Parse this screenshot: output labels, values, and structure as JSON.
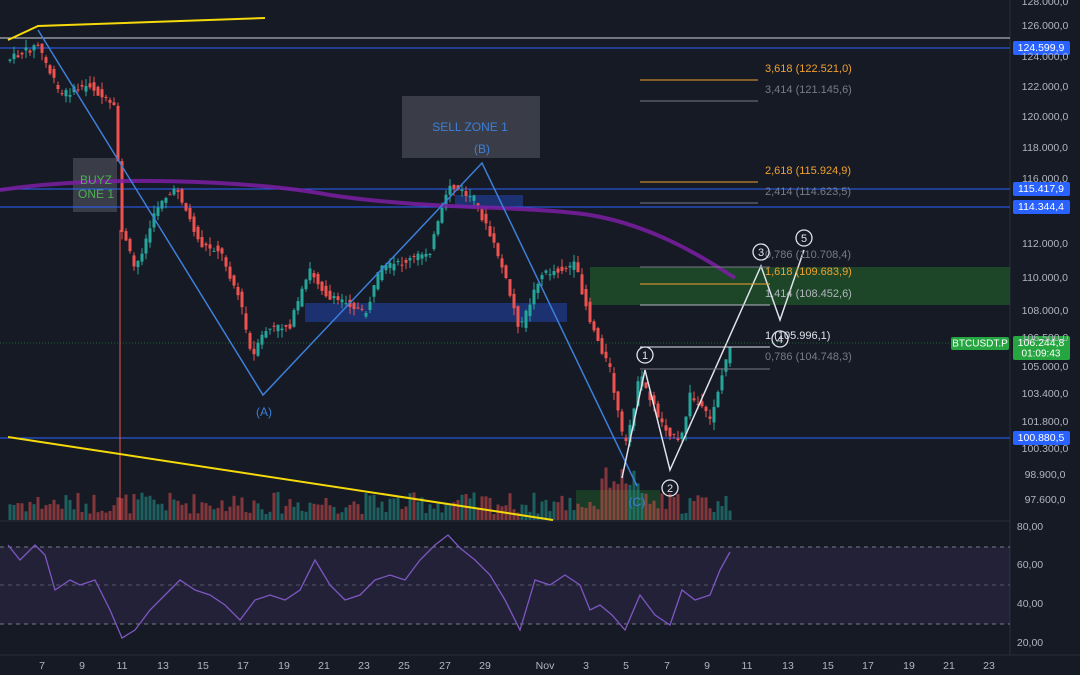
{
  "price_axis": [
    "128.000,0",
    "126.000,0",
    "124.000,0",
    "122.000,0",
    "120.000,0",
    "118.000,0",
    "116.000,0",
    "112.000,0",
    "110.000,0",
    "108.000,0",
    "106.500,0",
    "105.000,0",
    "103.400,0",
    "101.800,0",
    "100.300,0",
    "98.900,0",
    "97.600,0"
  ],
  "price_tags": [
    "124.599,9",
    "115.417,9",
    "114.344,4",
    "100.880,5"
  ],
  "symbol_tag": {
    "symbol": "BTCUSDT.P",
    "price": "106.244,8",
    "countdown": "01:09:43"
  },
  "rsi_axis": [
    "80,00",
    "60,00",
    "40,00",
    "20,00"
  ],
  "date_axis": [
    "7",
    "9",
    "11",
    "13",
    "15",
    "17",
    "19",
    "21",
    "23",
    "25",
    "27",
    "29",
    "Nov",
    "3",
    "5",
    "7",
    "9",
    "11",
    "13",
    "15",
    "17",
    "19",
    "21",
    "23"
  ],
  "fib_levels": [
    "3,618 (122.521,0)",
    "3,414 (121.145,6)",
    "2,618 (115.924,9)",
    "2,414 (114.623,5)",
    "0,786 (110.708,4)",
    "1,618 (109.683,9)",
    "1,414 (108.452,6)",
    "1 (105.996,1)",
    "0,786 (104.748,3)"
  ],
  "annotations": {
    "sell_zone": "SELL ZONE 1",
    "buy_zone": "BUYZ ONE 1",
    "wave_a": "(A)",
    "wave_b": "(B)",
    "wave_c": "(C)"
  },
  "wave_labels": [
    "1",
    "2",
    "3",
    "4",
    "5"
  ]
}
